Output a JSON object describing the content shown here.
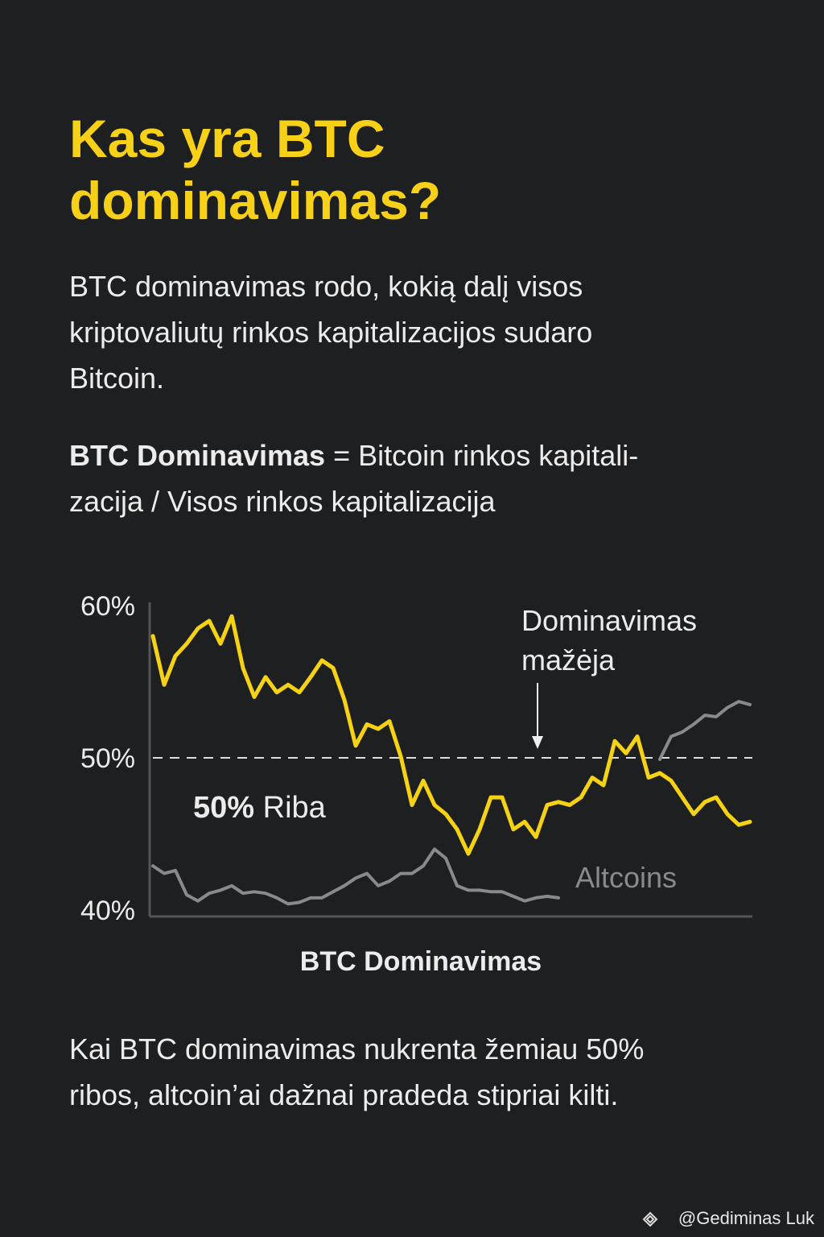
{
  "header": {
    "title_lines": [
      "Kas yra BTC",
      "dominavimas?"
    ]
  },
  "intro_lines": [
    "BTC dominavimas rodo, kokią dalį visos",
    "kriptovaliutų rinkos kapitalizacijos sudaro",
    "Bitcoin."
  ],
  "formula": {
    "term": "BTC Dominavimas",
    "line1": "= Bitcoin rinkos kapitali-",
    "line2": "zacija / Visos rinkos kapitalizacija"
  },
  "chart_data": {
    "type": "line",
    "x_label": "BTC Dominavimas",
    "ylim": [
      40,
      60
    ],
    "yticks": [
      {
        "value": 40,
        "label": "40%"
      },
      {
        "value": 50,
        "label": "50%"
      },
      {
        "value": 60,
        "label": "60%"
      }
    ],
    "grid": false,
    "threshold": {
      "value": 50,
      "label_bold": "50%",
      "label": "Riba"
    },
    "annotation": {
      "lines": [
        "Dominavimas",
        "mažėja"
      ]
    },
    "series": [
      {
        "color": "#f5d213",
        "values": [
          58.0,
          54.8,
          56.7,
          57.5,
          58.5,
          59.0,
          57.5,
          59.3,
          55.9,
          54.0,
          55.3,
          54.3,
          54.8,
          54.3,
          55.3,
          56.4,
          55.9,
          53.8,
          50.8,
          52.2,
          51.9,
          52.4,
          50.1,
          46.9,
          48.5,
          46.9,
          46.3,
          45.3,
          43.7,
          45.3,
          47.4,
          47.4,
          45.3,
          45.8,
          44.8,
          46.9,
          47.1,
          46.9,
          47.4,
          48.7,
          48.2,
          51.1,
          50.3,
          51.4,
          48.7,
          49.0,
          48.5,
          47.4,
          46.3,
          47.1,
          47.4,
          46.3,
          45.6,
          45.8
        ]
      },
      {
        "name": "Altcoins",
        "color": "#8a8a8a",
        "values": [
          42.9,
          42.4,
          42.6,
          41.0,
          40.6,
          41.1,
          41.3,
          41.6,
          41.1,
          41.2,
          41.1,
          40.8,
          40.4,
          40.5,
          40.8,
          40.8,
          41.2,
          41.6,
          42.1,
          42.4,
          41.6,
          41.9,
          42.4,
          42.4,
          42.9,
          44.0,
          43.4,
          41.6,
          41.3,
          41.3,
          41.2,
          41.2,
          40.9,
          40.6,
          40.8,
          40.9,
          40.8,
          null,
          null,
          null,
          null,
          null,
          null,
          null,
          null,
          49.9,
          51.4,
          51.7,
          52.2,
          52.8,
          52.7,
          53.3,
          53.7,
          53.5
        ]
      }
    ]
  },
  "outro_lines": [
    "Kai BTC dominavimas nukrenta žemiau 50%",
    "ribos, altcoin’ai dažnai pradeda stipriai kilti."
  ],
  "footer": "@Gediminas Luk"
}
